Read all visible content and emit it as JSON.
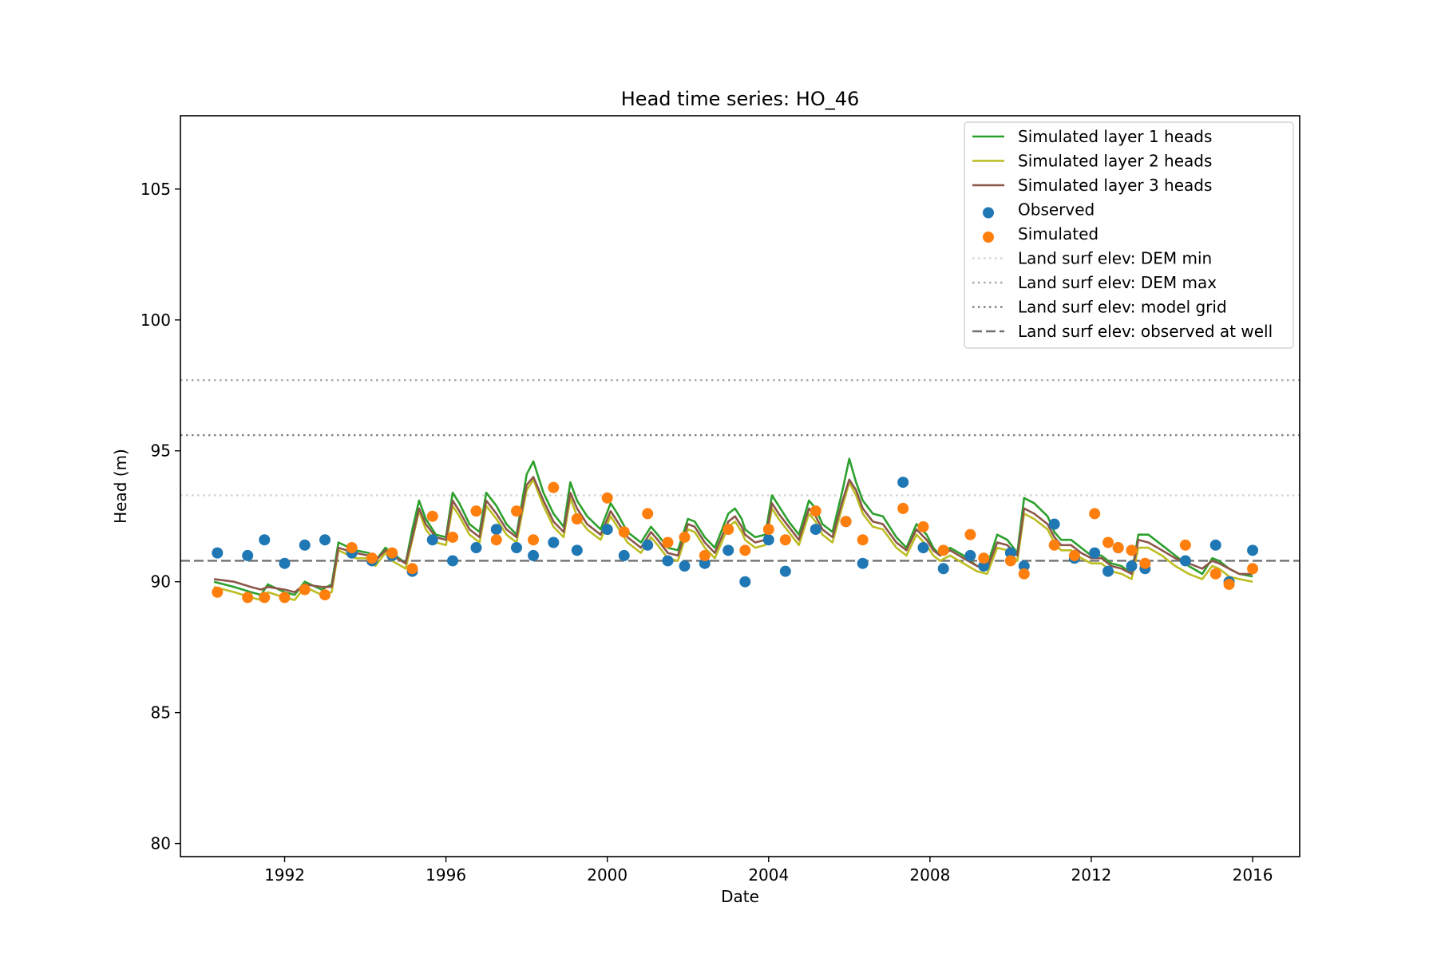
{
  "chart_data": {
    "type": "line",
    "title": "Head time series: HO_46",
    "xlabel": "Date",
    "ylabel": "Head (m)",
    "xlim": [
      "1989-06-01",
      "2017-03-01"
    ],
    "ylim": [
      79.5,
      107.8
    ],
    "xticks": [
      "1992",
      "1996",
      "2000",
      "2004",
      "2008",
      "2012",
      "2016"
    ],
    "yticks": [
      80,
      85,
      90,
      95,
      100,
      105
    ],
    "grid": false,
    "legend_position": "upper right",
    "reference_lines": [
      {
        "name": "Land surf elev: DEM min",
        "value": 93.3,
        "style": "dotted",
        "color": "#d3d3d3"
      },
      {
        "name": "Land surf elev: DEM max",
        "value": 97.7,
        "style": "dotted",
        "color": "#a9a9a9"
      },
      {
        "name": "Land surf elev: model grid",
        "value": 95.6,
        "style": "dotted",
        "color": "#808080"
      },
      {
        "name": "Land surf elev: observed at well",
        "value": 90.8,
        "style": "dashed",
        "color": "#707070"
      }
    ],
    "series": [
      {
        "name": "Simulated layer 1 heads",
        "kind": "line",
        "color": "#2ca02c",
        "x": [
          "1990-04-01",
          "1990-10-01",
          "1991-03-01",
          "1991-06-01",
          "1991-08-01",
          "1992-01-01",
          "1992-04-01",
          "1992-07-01",
          "1992-12-01",
          "1993-03-01",
          "1993-05-01",
          "1993-10-01",
          "1994-02-01",
          "1994-04-01",
          "1994-07-01",
          "1994-09-01",
          "1995-01-01",
          "1995-03-01",
          "1995-05-01",
          "1995-07-01",
          "1995-10-01",
          "1996-01-01",
          "1996-03-01",
          "1996-05-01",
          "1996-08-01",
          "1996-11-01",
          "1997-01-01",
          "1997-04-01",
          "1997-07-01",
          "1997-10-01",
          "1998-01-01",
          "1998-03-01",
          "1998-06-01",
          "1998-09-01",
          "1998-12-01",
          "1999-02-01",
          "1999-04-01",
          "1999-07-01",
          "1999-11-01",
          "2000-02-01",
          "2000-04-01",
          "2000-07-01",
          "2000-11-01",
          "2001-02-01",
          "2001-04-01",
          "2001-07-01",
          "2001-10-01",
          "2002-01-01",
          "2002-03-01",
          "2002-06-01",
          "2002-09-01",
          "2003-01-01",
          "2003-03-01",
          "2003-05-01",
          "2003-06-01",
          "2003-09-01",
          "2003-12-01",
          "2004-02-01",
          "2004-04-01",
          "2004-07-01",
          "2004-10-01",
          "2005-01-01",
          "2005-03-01",
          "2005-05-01",
          "2005-08-01",
          "2005-11-01",
          "2006-01-01",
          "2006-03-01",
          "2006-05-01",
          "2006-08-01",
          "2006-11-01",
          "2007-03-01",
          "2007-06-01",
          "2007-09-01",
          "2007-12-01",
          "2008-02-01",
          "2008-04-01",
          "2008-07-01",
          "2008-11-01",
          "2009-03-01",
          "2009-06-01",
          "2009-09-01",
          "2009-12-01",
          "2010-03-01",
          "2010-05-01",
          "2010-08-01",
          "2010-12-01",
          "2011-02-01",
          "2011-04-01",
          "2011-07-01",
          "2011-10-01",
          "2012-01-01",
          "2012-04-01",
          "2012-07-01",
          "2012-10-01",
          "2013-01-01",
          "2013-03-01",
          "2013-06-01",
          "2013-10-01",
          "2014-02-01",
          "2014-06-01",
          "2014-10-01",
          "2015-01-01",
          "2015-03-01",
          "2015-06-01",
          "2015-09-01",
          "2016-01-01"
        ],
        "y": [
          90.0,
          89.8,
          89.6,
          89.5,
          89.9,
          89.6,
          89.5,
          90.0,
          89.7,
          89.9,
          91.5,
          91.2,
          91.1,
          90.8,
          91.3,
          91.1,
          90.7,
          92.0,
          93.1,
          92.4,
          91.8,
          91.7,
          93.4,
          93.0,
          92.2,
          91.9,
          93.4,
          92.9,
          92.2,
          91.8,
          94.1,
          94.6,
          93.4,
          92.6,
          92.1,
          93.8,
          93.1,
          92.5,
          92.0,
          93.0,
          92.6,
          91.9,
          91.5,
          92.1,
          91.8,
          91.3,
          91.2,
          92.4,
          92.3,
          91.7,
          91.3,
          92.6,
          92.8,
          92.4,
          92.0,
          91.7,
          91.8,
          93.3,
          92.9,
          92.3,
          91.8,
          93.1,
          92.8,
          92.2,
          91.9,
          93.5,
          94.7,
          93.8,
          93.1,
          92.6,
          92.5,
          91.7,
          91.3,
          92.2,
          91.8,
          91.3,
          91.0,
          91.3,
          91.0,
          90.6,
          90.6,
          91.8,
          91.6,
          91.1,
          93.2,
          93.0,
          92.5,
          91.9,
          91.6,
          91.6,
          91.3,
          91.0,
          91.0,
          90.7,
          90.6,
          90.3,
          91.8,
          91.8,
          91.4,
          91.0,
          90.6,
          90.3,
          90.9,
          90.8,
          90.5,
          90.3,
          90.2
        ]
      },
      {
        "name": "Simulated layer 2 heads",
        "kind": "line",
        "color": "#bcbd22",
        "x": [
          "1990-04-01",
          "1990-10-01",
          "1991-03-01",
          "1991-06-01",
          "1991-08-01",
          "1992-01-01",
          "1992-04-01",
          "1992-07-01",
          "1992-12-01",
          "1993-03-01",
          "1993-05-01",
          "1993-10-01",
          "1994-02-01",
          "1994-04-01",
          "1994-07-01",
          "1994-09-01",
          "1995-01-01",
          "1995-03-01",
          "1995-05-01",
          "1995-07-01",
          "1995-10-01",
          "1996-01-01",
          "1996-03-01",
          "1996-05-01",
          "1996-08-01",
          "1996-11-01",
          "1997-01-01",
          "1997-04-01",
          "1997-07-01",
          "1997-10-01",
          "1998-01-01",
          "1998-03-01",
          "1998-06-01",
          "1998-09-01",
          "1998-12-01",
          "1999-02-01",
          "1999-04-01",
          "1999-07-01",
          "1999-11-01",
          "2000-02-01",
          "2000-04-01",
          "2000-07-01",
          "2000-11-01",
          "2001-02-01",
          "2001-04-01",
          "2001-07-01",
          "2001-10-01",
          "2002-01-01",
          "2002-03-01",
          "2002-06-01",
          "2002-09-01",
          "2003-01-01",
          "2003-03-01",
          "2003-05-01",
          "2003-06-01",
          "2003-09-01",
          "2003-12-01",
          "2004-02-01",
          "2004-04-01",
          "2004-07-01",
          "2004-10-01",
          "2005-01-01",
          "2005-03-01",
          "2005-05-01",
          "2005-08-01",
          "2005-11-01",
          "2006-01-01",
          "2006-03-01",
          "2006-05-01",
          "2006-08-01",
          "2006-11-01",
          "2007-03-01",
          "2007-06-01",
          "2007-09-01",
          "2007-12-01",
          "2008-02-01",
          "2008-04-01",
          "2008-07-01",
          "2008-11-01",
          "2009-03-01",
          "2009-06-01",
          "2009-09-01",
          "2009-12-01",
          "2010-03-01",
          "2010-05-01",
          "2010-08-01",
          "2010-12-01",
          "2011-02-01",
          "2011-04-01",
          "2011-07-01",
          "2011-10-01",
          "2012-01-01",
          "2012-04-01",
          "2012-07-01",
          "2012-10-01",
          "2013-01-01",
          "2013-03-01",
          "2013-06-01",
          "2013-10-01",
          "2014-02-01",
          "2014-06-01",
          "2014-10-01",
          "2015-01-01",
          "2015-03-01",
          "2015-06-01",
          "2015-09-01",
          "2016-01-01"
        ],
        "y": [
          89.8,
          89.6,
          89.4,
          89.3,
          89.6,
          89.4,
          89.3,
          89.8,
          89.5,
          89.6,
          91.2,
          90.9,
          90.9,
          90.6,
          91.1,
          90.8,
          90.5,
          91.6,
          92.7,
          92.0,
          91.5,
          91.4,
          92.9,
          92.5,
          91.8,
          91.5,
          92.9,
          92.4,
          91.8,
          91.5,
          93.5,
          93.9,
          92.9,
          92.1,
          91.7,
          93.2,
          92.5,
          92.0,
          91.6,
          92.5,
          92.1,
          91.5,
          91.1,
          91.7,
          91.4,
          90.9,
          90.8,
          92.0,
          91.9,
          91.3,
          90.9,
          92.1,
          92.3,
          91.9,
          91.6,
          91.3,
          91.4,
          92.8,
          92.4,
          91.9,
          91.4,
          92.6,
          92.3,
          91.8,
          91.5,
          92.9,
          93.8,
          93.3,
          92.6,
          92.1,
          92.0,
          91.3,
          91.0,
          91.8,
          91.4,
          91.0,
          90.8,
          91.0,
          90.7,
          90.4,
          90.3,
          91.3,
          91.2,
          90.8,
          92.6,
          92.4,
          92.0,
          91.5,
          91.2,
          91.2,
          90.9,
          90.7,
          90.7,
          90.4,
          90.3,
          90.1,
          91.3,
          91.3,
          91.0,
          90.6,
          90.3,
          90.1,
          90.6,
          90.5,
          90.2,
          90.1,
          90.0
        ]
      },
      {
        "name": "Simulated layer 3 heads",
        "kind": "line",
        "color": "#8c564b",
        "x": [
          "1990-04-01",
          "1990-10-01",
          "1991-03-01",
          "1991-06-01",
          "1991-08-01",
          "1992-01-01",
          "1992-04-01",
          "1992-07-01",
          "1992-12-01",
          "1993-03-01",
          "1993-05-01",
          "1993-10-01",
          "1994-02-01",
          "1994-04-01",
          "1994-07-01",
          "1994-09-01",
          "1995-01-01",
          "1995-03-01",
          "1995-05-01",
          "1995-07-01",
          "1995-10-01",
          "1996-01-01",
          "1996-03-01",
          "1996-05-01",
          "1996-08-01",
          "1996-11-01",
          "1997-01-01",
          "1997-04-01",
          "1997-07-01",
          "1997-10-01",
          "1998-01-01",
          "1998-03-01",
          "1998-06-01",
          "1998-09-01",
          "1998-12-01",
          "1999-02-01",
          "1999-04-01",
          "1999-07-01",
          "1999-11-01",
          "2000-02-01",
          "2000-04-01",
          "2000-07-01",
          "2000-11-01",
          "2001-02-01",
          "2001-04-01",
          "2001-07-01",
          "2001-10-01",
          "2002-01-01",
          "2002-03-01",
          "2002-06-01",
          "2002-09-01",
          "2003-01-01",
          "2003-03-01",
          "2003-05-01",
          "2003-06-01",
          "2003-09-01",
          "2003-12-01",
          "2004-02-01",
          "2004-04-01",
          "2004-07-01",
          "2004-10-01",
          "2005-01-01",
          "2005-03-01",
          "2005-05-01",
          "2005-08-01",
          "2005-11-01",
          "2006-01-01",
          "2006-03-01",
          "2006-05-01",
          "2006-08-01",
          "2006-11-01",
          "2007-03-01",
          "2007-06-01",
          "2007-09-01",
          "2007-12-01",
          "2008-02-01",
          "2008-04-01",
          "2008-07-01",
          "2008-11-01",
          "2009-03-01",
          "2009-06-01",
          "2009-09-01",
          "2009-12-01",
          "2010-03-01",
          "2010-05-01",
          "2010-08-01",
          "2010-12-01",
          "2011-02-01",
          "2011-04-01",
          "2011-07-01",
          "2011-10-01",
          "2012-01-01",
          "2012-04-01",
          "2012-07-01",
          "2012-10-01",
          "2013-01-01",
          "2013-03-01",
          "2013-06-01",
          "2013-10-01",
          "2014-02-01",
          "2014-06-01",
          "2014-10-01",
          "2015-01-01",
          "2015-03-01",
          "2015-06-01",
          "2015-09-01",
          "2016-01-01"
        ],
        "y": [
          90.1,
          90.0,
          89.8,
          89.7,
          89.8,
          89.7,
          89.6,
          89.9,
          89.8,
          89.8,
          91.3,
          91.1,
          91.0,
          90.8,
          91.2,
          91.0,
          90.7,
          91.7,
          92.8,
          92.2,
          91.7,
          91.6,
          93.1,
          92.7,
          92.0,
          91.7,
          93.1,
          92.6,
          92.0,
          91.7,
          93.7,
          94.0,
          93.1,
          92.3,
          91.9,
          93.4,
          92.8,
          92.2,
          91.8,
          92.7,
          92.3,
          91.7,
          91.3,
          91.9,
          91.6,
          91.1,
          91.0,
          92.2,
          92.1,
          91.5,
          91.1,
          92.3,
          92.5,
          92.1,
          91.8,
          91.5,
          91.6,
          93.0,
          92.6,
          92.1,
          91.6,
          92.8,
          92.5,
          92.0,
          91.7,
          93.1,
          93.9,
          93.5,
          92.8,
          92.3,
          92.2,
          91.5,
          91.2,
          92.0,
          91.6,
          91.2,
          91.0,
          91.2,
          90.9,
          90.6,
          90.5,
          91.5,
          91.4,
          91.0,
          92.8,
          92.6,
          92.2,
          91.7,
          91.4,
          91.4,
          91.1,
          90.9,
          90.9,
          90.6,
          90.5,
          90.3,
          91.6,
          91.5,
          91.2,
          90.9,
          90.7,
          90.5,
          90.8,
          90.7,
          90.5,
          90.3,
          90.3
        ]
      },
      {
        "name": "Observed",
        "kind": "scatter",
        "color": "#1f77b4",
        "x": [
          "1990-05-01",
          "1991-02-01",
          "1991-07-01",
          "1992-01-01",
          "1992-07-01",
          "1993-01-01",
          "1993-09-01",
          "1994-03-01",
          "1994-09-01",
          "1995-03-01",
          "1995-09-01",
          "1996-03-01",
          "1996-10-01",
          "1997-04-01",
          "1997-10-01",
          "1998-03-01",
          "1998-09-01",
          "1999-04-01",
          "2000-01-01",
          "2000-06-01",
          "2001-01-01",
          "2001-07-01",
          "2001-12-01",
          "2002-06-01",
          "2003-01-01",
          "2003-06-01",
          "2004-01-01",
          "2004-06-01",
          "2005-03-01",
          "2005-12-01",
          "2006-05-01",
          "2007-05-01",
          "2007-11-01",
          "2008-05-01",
          "2009-01-01",
          "2009-05-01",
          "2010-01-01",
          "2010-05-01",
          "2011-02-01",
          "2011-08-01",
          "2012-02-01",
          "2012-06-01",
          "2012-09-01",
          "2013-01-01",
          "2013-05-01",
          "2014-05-01",
          "2015-02-01",
          "2015-06-01",
          "2016-01-01"
        ],
        "y": [
          91.1,
          91.0,
          91.6,
          90.7,
          91.4,
          91.6,
          91.1,
          90.8,
          91.0,
          90.4,
          91.6,
          90.8,
          91.3,
          92.0,
          91.3,
          91.0,
          91.5,
          91.2,
          92.0,
          91.0,
          91.4,
          90.8,
          90.6,
          90.7,
          91.2,
          90.0,
          91.6,
          90.4,
          92.0,
          92.3,
          90.7,
          93.8,
          91.3,
          90.5,
          91.0,
          90.6,
          91.1,
          90.6,
          92.2,
          90.9,
          91.1,
          90.4,
          91.3,
          90.6,
          90.5,
          90.8,
          91.4,
          90.0,
          91.2
        ]
      },
      {
        "name": "Simulated",
        "kind": "scatter",
        "color": "#ff7f0e",
        "x": [
          "1990-05-01",
          "1991-02-01",
          "1991-07-01",
          "1992-01-01",
          "1992-07-01",
          "1993-01-01",
          "1993-09-01",
          "1994-03-01",
          "1994-09-01",
          "1995-03-01",
          "1995-09-01",
          "1996-03-01",
          "1996-10-01",
          "1997-04-01",
          "1997-10-01",
          "1998-03-01",
          "1998-09-01",
          "1999-04-01",
          "2000-01-01",
          "2000-06-01",
          "2001-01-01",
          "2001-07-01",
          "2001-12-01",
          "2002-06-01",
          "2003-01-01",
          "2003-06-01",
          "2004-01-01",
          "2004-06-01",
          "2005-03-01",
          "2005-12-01",
          "2006-05-01",
          "2007-05-01",
          "2007-11-01",
          "2008-05-01",
          "2009-01-01",
          "2009-05-01",
          "2010-01-01",
          "2010-05-01",
          "2011-02-01",
          "2011-08-01",
          "2012-02-01",
          "2012-06-01",
          "2012-09-01",
          "2013-01-01",
          "2013-05-01",
          "2014-05-01",
          "2015-02-01",
          "2015-06-01",
          "2016-01-01"
        ],
        "y": [
          89.6,
          89.4,
          89.4,
          89.4,
          89.7,
          89.5,
          91.3,
          90.9,
          91.1,
          90.5,
          92.5,
          91.7,
          92.7,
          91.6,
          92.7,
          91.6,
          93.6,
          92.4,
          93.2,
          91.9,
          92.6,
          91.5,
          91.7,
          91.0,
          92.0,
          91.2,
          92.0,
          91.6,
          92.7,
          92.3,
          91.6,
          92.8,
          92.1,
          91.2,
          91.8,
          90.9,
          90.8,
          90.3,
          91.4,
          91.0,
          92.6,
          91.5,
          91.3,
          91.2,
          90.7,
          91.4,
          90.3,
          89.9,
          90.5
        ]
      }
    ]
  }
}
